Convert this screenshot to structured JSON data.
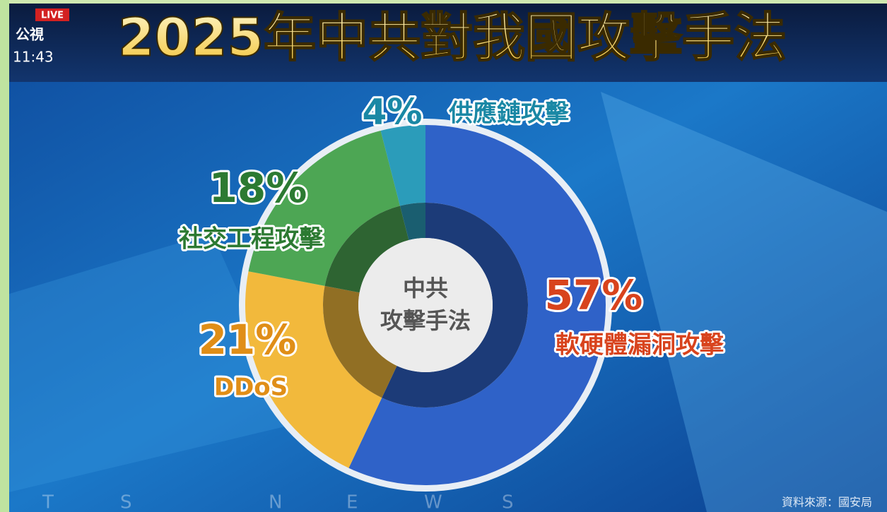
{
  "chart_data": {
    "type": "pie",
    "donut": true,
    "title": "2025年中共對我國攻擊手法",
    "center_label": [
      "中共",
      "攻擊手法"
    ],
    "categories": [
      "軟硬體漏洞攻擊",
      "DDoS",
      "社交工程攻擊",
      "供應鏈攻擊"
    ],
    "values": [
      57,
      21,
      18,
      4
    ],
    "value_labels": [
      "57%",
      "21%",
      "18%",
      "4%"
    ],
    "colors": [
      "#2f62c8",
      "#f2b93c",
      "#4da654",
      "#2b9cba"
    ],
    "label_colors": [
      "#d8431d",
      "#e08e17",
      "#2c7a32",
      "#1a88a5"
    ],
    "source": "資料來源：國安局",
    "channel": {
      "live": "LIVE",
      "logo": "公視",
      "time": "11:43"
    },
    "watermark": [
      "T",
      "S",
      "N",
      "E",
      "W",
      "S"
    ]
  }
}
